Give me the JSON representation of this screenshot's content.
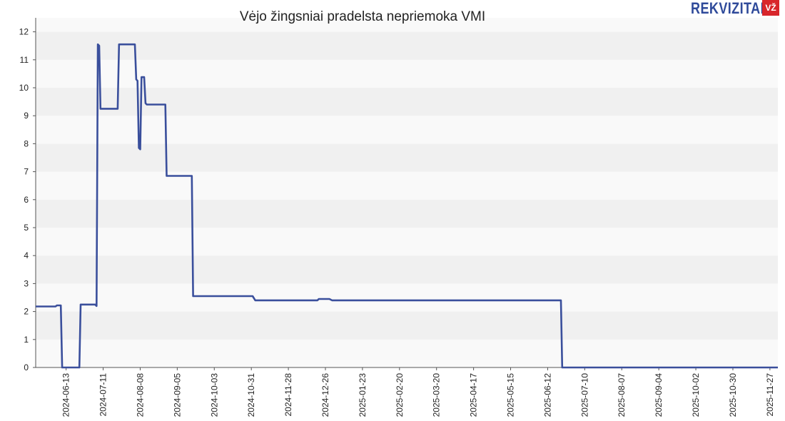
{
  "brand": {
    "name": "REKVIZITAI",
    "badge": "VŽ"
  },
  "chart_data": {
    "type": "line",
    "title": "Vėjo žingsniai pradelsta nepriemoka VMI",
    "xlabel": "",
    "ylabel": "",
    "ylim": [
      0,
      12.5
    ],
    "yticks": [
      0,
      1,
      2,
      3,
      4,
      5,
      6,
      7,
      8,
      9,
      10,
      11,
      12
    ],
    "x_range": [
      "2024-05-21",
      "2025-12-03"
    ],
    "x_ticks": [
      "2024-06-13",
      "2024-07-11",
      "2024-08-08",
      "2024-09-05",
      "2024-10-03",
      "2024-10-31",
      "2024-11-28",
      "2024-12-26",
      "2025-01-23",
      "2025-02-20",
      "2025-03-20",
      "2025-04-17",
      "2025-05-15",
      "2025-06-12",
      "2025-07-10",
      "2025-08-07",
      "2025-09-04",
      "2025-10-02",
      "2025-10-30",
      "2025-11-27"
    ],
    "grid": "horizontal-bands",
    "legend": "none",
    "line_color": "#3a4f9c",
    "series": [
      {
        "points": [
          [
            "2024-05-21",
            2.18
          ],
          [
            "2024-06-05",
            2.18
          ],
          [
            "2024-06-06",
            2.22
          ],
          [
            "2024-06-09",
            2.22
          ],
          [
            "2024-06-10",
            0
          ],
          [
            "2024-06-23",
            0
          ],
          [
            "2024-06-24",
            2.25
          ],
          [
            "2024-07-05",
            2.25
          ],
          [
            "2024-07-06",
            2.2
          ],
          [
            "2024-07-07",
            11.55
          ],
          [
            "2024-07-08",
            11.5
          ],
          [
            "2024-07-09",
            9.25
          ],
          [
            "2024-07-22",
            9.25
          ],
          [
            "2024-07-23",
            11.55
          ],
          [
            "2024-08-04",
            11.55
          ],
          [
            "2024-08-05",
            10.3
          ],
          [
            "2024-08-06",
            10.25
          ],
          [
            "2024-08-07",
            7.85
          ],
          [
            "2024-08-08",
            7.8
          ],
          [
            "2024-08-09",
            10.38
          ],
          [
            "2024-08-11",
            10.38
          ],
          [
            "2024-08-12",
            9.45
          ],
          [
            "2024-08-13",
            9.4
          ],
          [
            "2024-08-27",
            9.4
          ],
          [
            "2024-08-28",
            6.85
          ],
          [
            "2024-09-16",
            6.85
          ],
          [
            "2024-09-17",
            2.55
          ],
          [
            "2024-11-01",
            2.55
          ],
          [
            "2024-11-03",
            2.4
          ],
          [
            "2024-12-20",
            2.4
          ],
          [
            "2024-12-21",
            2.45
          ],
          [
            "2024-12-29",
            2.45
          ],
          [
            "2024-12-31",
            2.4
          ],
          [
            "2025-06-22",
            2.4
          ],
          [
            "2025-06-23",
            0
          ],
          [
            "2025-12-03",
            0
          ]
        ]
      }
    ]
  }
}
